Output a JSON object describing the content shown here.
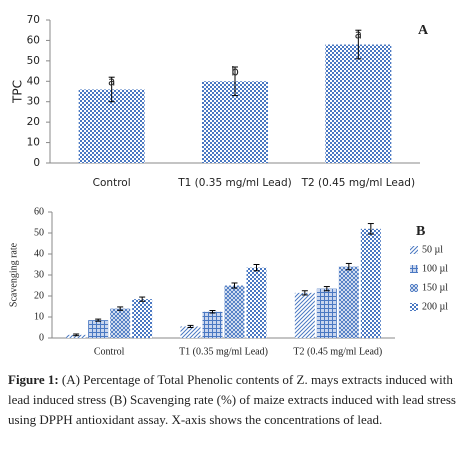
{
  "chart_data": [
    {
      "type": "bar",
      "ylabel": "TPC",
      "panel": "A",
      "categories": [
        "Control",
        "T1 (0.35 mg/ml Lead)",
        "T2 (0.45 mg/ml Lead)"
      ],
      "series": [
        {
          "values": [
            36,
            40,
            58
          ],
          "errors": [
            6,
            7,
            7
          ],
          "color": "#4a78c2"
        }
      ],
      "bar_labels": [
        "a",
        "b",
        "a"
      ],
      "ylim": [
        0,
        70
      ],
      "yticks": [
        0,
        10,
        20,
        30,
        40,
        50,
        60,
        70
      ]
    },
    {
      "type": "bar",
      "ylabel": "Scavenging rate",
      "panel": "B",
      "categories": [
        "Control",
        "T1 (0.35 mg/ml Lead)",
        "T2 (0.45 mg/ml Lead)"
      ],
      "series": [
        {
          "name": "50 µl",
          "values": [
            1.5,
            5.5,
            21.5
          ],
          "errors": [
            0.4,
            0.5,
            1
          ],
          "color": "#4a78c2"
        },
        {
          "name": "100 µl",
          "values": [
            8.5,
            12.5,
            23.5
          ],
          "errors": [
            0.5,
            0.6,
            1
          ],
          "color": "#4a78c2"
        },
        {
          "name": "150 µl",
          "values": [
            14,
            25,
            34
          ],
          "errors": [
            0.8,
            1.2,
            1.5
          ],
          "color": "#4a78c2"
        },
        {
          "name": "200 µl",
          "values": [
            18.5,
            33.5,
            52
          ],
          "errors": [
            1,
            1.5,
            2.5
          ],
          "color": "#4a78c2"
        }
      ],
      "ylim": [
        0,
        60
      ],
      "yticks": [
        0,
        10,
        20,
        30,
        40,
        50,
        60
      ],
      "legend": "right"
    }
  ],
  "caption": {
    "label": "Figure 1:",
    "text": "(A) Percentage of Total Phenolic contents of Z. mays extracts induced with lead induced stress (B) Scavenging rate (%) of maize extracts induced with lead stress using DPPH antioxidant assay. X-axis shows the concentrations of lead."
  }
}
